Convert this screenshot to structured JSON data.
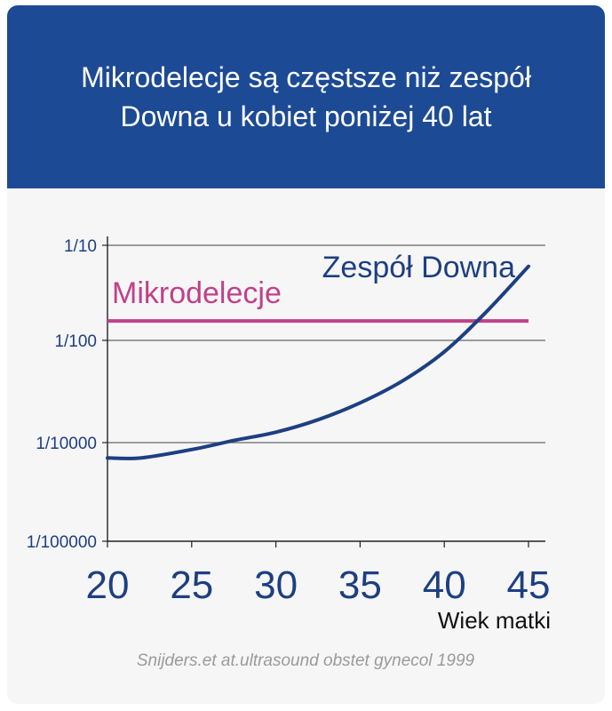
{
  "header": {
    "title_line1": "Mikrodelecje są częstsze niż zespół",
    "title_line2": "Downa u kobiet poniżej 40 lat"
  },
  "colors": {
    "header_bg": "#1d4a94",
    "down_series": "#1d3f82",
    "microdeletion_series": "#c0418a",
    "axis": "#222222"
  },
  "chart_data": {
    "type": "line",
    "title": "Mikrodelecje są częstsze niż zespół Downa u kobiet poniżej 40 lat",
    "xlabel": "Wiek matki",
    "ylabel": "",
    "y_scale": "log",
    "x_ticks": [
      "20",
      "25",
      "30",
      "35",
      "40",
      "45"
    ],
    "y_ticks": [
      {
        "label": "1/10",
        "value": 0.1
      },
      {
        "label": "1/100",
        "value": 0.01
      },
      {
        "label": "1/10000",
        "value": 0.0001
      },
      {
        "label": "1/100000",
        "value": 1e-05
      }
    ],
    "xlim": [
      20,
      45
    ],
    "grid": "horizontal",
    "series": [
      {
        "name": "Zespół Downa",
        "x": [
          20,
          22,
          25,
          27.5,
          30,
          32.5,
          35,
          37.5,
          40,
          42.5,
          45
        ],
        "y": [
          7e-05,
          7e-05,
          8.5e-05,
          0.00011,
          0.00016,
          0.00028,
          0.0006,
          0.0016,
          0.006,
          0.02,
          0.06
        ]
      },
      {
        "name": "Mikrodelecje",
        "x": [
          20,
          45
        ],
        "y": [
          0.016,
          0.016
        ]
      }
    ],
    "source": "Snijders.et at.ultrasound obstet gynecol 1999"
  }
}
